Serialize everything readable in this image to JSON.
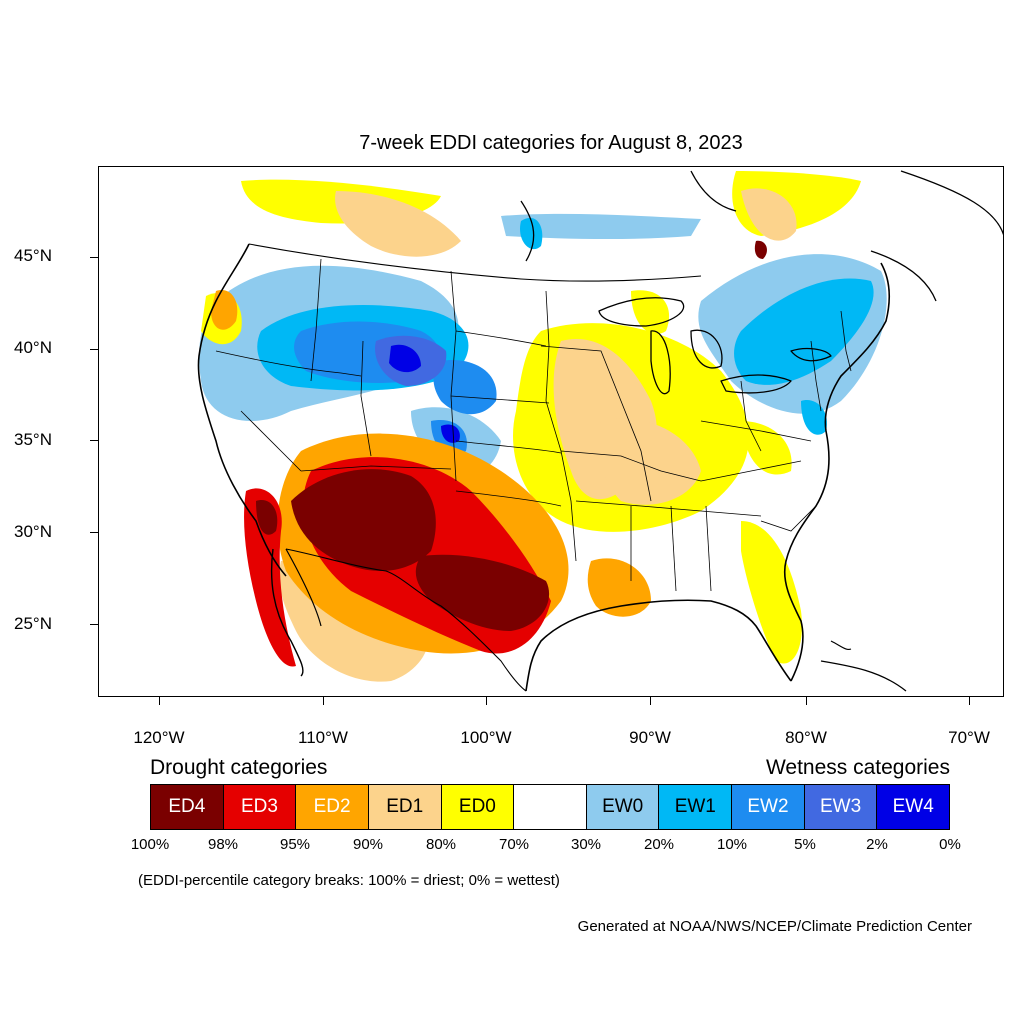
{
  "title": "7-week EDDI categories for August 8, 2023",
  "lat_labels": [
    "45°N",
    "40°N",
    "35°N",
    "30°N",
    "25°N"
  ],
  "lon_labels": [
    "120°W",
    "110°W",
    "100°W",
    "90°W",
    "80°W",
    "70°W"
  ],
  "drought_title": "Drought categories",
  "wetness_title": "Wetness categories",
  "categories": [
    {
      "label": "ED4",
      "color": "#7a0000",
      "text_color": "#ffffff"
    },
    {
      "label": "ED3",
      "color": "#e50000",
      "text_color": "#ffffff"
    },
    {
      "label": "ED2",
      "color": "#ffa500",
      "text_color": "#ffffff"
    },
    {
      "label": "ED1",
      "color": "#fcd38c",
      "text_color": "#000000"
    },
    {
      "label": "ED0",
      "color": "#ffff00",
      "text_color": "#000000"
    },
    {
      "label": "",
      "color": "#ffffff",
      "text_color": "#000000"
    },
    {
      "label": "EW0",
      "color": "#8ecbee",
      "text_color": "#000000"
    },
    {
      "label": "EW1",
      "color": "#00b8f5",
      "text_color": "#000000"
    },
    {
      "label": "EW2",
      "color": "#1e8cf0",
      "text_color": "#ffffff"
    },
    {
      "label": "EW3",
      "color": "#4169e1",
      "text_color": "#ffffff"
    },
    {
      "label": "EW4",
      "color": "#0000e6",
      "text_color": "#ffffff"
    }
  ],
  "percentiles": [
    "100%",
    "98%",
    "95%",
    "90%",
    "80%",
    "70%",
    "30%",
    "20%",
    "10%",
    "5%",
    "2%",
    "0%"
  ],
  "note": "(EDDI-percentile category breaks: 100% = driest; 0% = wettest)",
  "credit": "Generated at NOAA/NWS/NCEP/Climate Prediction Center"
}
